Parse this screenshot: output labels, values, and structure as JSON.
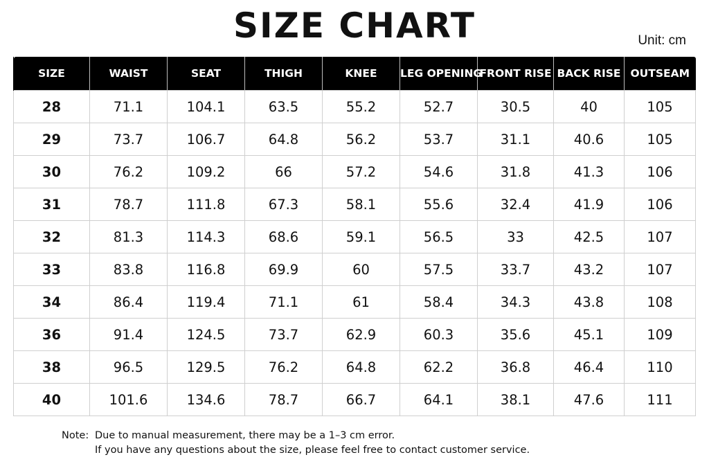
{
  "title": "SIZE CHART",
  "unit": "Unit: cm",
  "colors": {
    "header_bg": "#000000",
    "header_text": "#ffffff",
    "grid_line": "#cfcfcf",
    "text": "#111111"
  },
  "table": {
    "headers": [
      "SIZE",
      "WAIST",
      "SEAT",
      "THIGH",
      "KNEE",
      "LEG OPENING",
      "FRONT RISE",
      "BACK RISE",
      "OUTSEAM"
    ],
    "rows": [
      [
        "28",
        "71.1",
        "104.1",
        "63.5",
        "55.2",
        "52.7",
        "30.5",
        "40",
        "105"
      ],
      [
        "29",
        "73.7",
        "106.7",
        "64.8",
        "56.2",
        "53.7",
        "31.1",
        "40.6",
        "105"
      ],
      [
        "30",
        "76.2",
        "109.2",
        "66",
        "57.2",
        "54.6",
        "31.8",
        "41.3",
        "106"
      ],
      [
        "31",
        "78.7",
        "111.8",
        "67.3",
        "58.1",
        "55.6",
        "32.4",
        "41.9",
        "106"
      ],
      [
        "32",
        "81.3",
        "114.3",
        "68.6",
        "59.1",
        "56.5",
        "33",
        "42.5",
        "107"
      ],
      [
        "33",
        "83.8",
        "116.8",
        "69.9",
        "60",
        "57.5",
        "33.7",
        "43.2",
        "107"
      ],
      [
        "34",
        "86.4",
        "119.4",
        "71.1",
        "61",
        "58.4",
        "34.3",
        "43.8",
        "108"
      ],
      [
        "36",
        "91.4",
        "124.5",
        "73.7",
        "62.9",
        "60.3",
        "35.6",
        "45.1",
        "109"
      ],
      [
        "38",
        "96.5",
        "129.5",
        "76.2",
        "64.8",
        "62.2",
        "36.8",
        "46.4",
        "110"
      ],
      [
        "40",
        "101.6",
        "134.6",
        "78.7",
        "66.7",
        "64.1",
        "38.1",
        "47.6",
        "111"
      ]
    ]
  },
  "note": {
    "label": "Note:",
    "lines": [
      "Due to manual measurement, there may be a 1–3 cm error.",
      "If you have any questions about the size, please feel free to contact customer service."
    ]
  }
}
